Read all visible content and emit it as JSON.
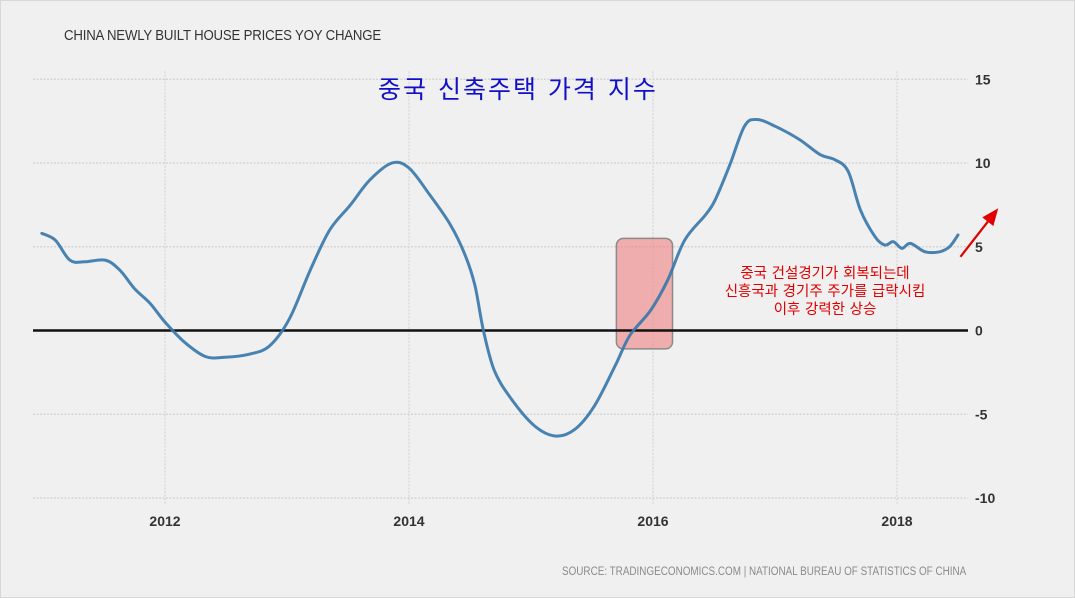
{
  "chart_data": {
    "type": "line",
    "title": "CHINA NEWLY BUILT HOUSE PRICES YOY CHANGE",
    "subtitle": "중국 신축주택 가격 지수",
    "xlabel": "",
    "ylabel": "",
    "xlim": [
      2010.97,
      2018.6
    ],
    "ylim": [
      -10,
      15
    ],
    "x_ticks": [
      "2012",
      "2014",
      "2016",
      "2018"
    ],
    "x_tick_values": [
      2012,
      2014,
      2016,
      2018
    ],
    "y_ticks": [
      "15",
      "10",
      "5",
      "0",
      "-5",
      "-10"
    ],
    "y_tick_values": [
      15,
      10,
      5,
      0,
      -5,
      -10
    ],
    "grid": true,
    "y_axis_side": "right",
    "series": [
      {
        "name": "China Newly Built House Prices YoY Change",
        "color": "#3a78aa",
        "x": [
          2010.99,
          2011.1,
          2011.22,
          2011.34,
          2011.51,
          2011.63,
          2011.75,
          2011.88,
          2012.0,
          2012.16,
          2012.33,
          2012.49,
          2012.7,
          2012.86,
          2013.02,
          2013.19,
          2013.35,
          2013.52,
          2013.68,
          2013.86,
          2014.0,
          2014.17,
          2014.34,
          2014.46,
          2014.54,
          2014.61,
          2014.7,
          2014.84,
          2015.03,
          2015.2,
          2015.36,
          2015.52,
          2015.69,
          2015.81,
          2015.98,
          2016.12,
          2016.26,
          2016.43,
          2016.51,
          2016.63,
          2016.75,
          2016.85,
          2017.0,
          2017.2,
          2017.37,
          2017.49,
          2017.6,
          2017.7,
          2017.82,
          2017.9,
          2017.97,
          2018.04,
          2018.11,
          2018.23,
          2018.35,
          2018.43,
          2018.5
        ],
        "values": [
          5.8,
          5.4,
          4.2,
          4.1,
          4.2,
          3.6,
          2.5,
          1.6,
          0.5,
          -0.7,
          -1.55,
          -1.6,
          -1.4,
          -0.9,
          0.7,
          3.6,
          6.0,
          7.5,
          9.0,
          10.0,
          9.7,
          8.1,
          6.3,
          4.5,
          2.7,
          0.0,
          -2.4,
          -4.1,
          -5.7,
          -6.3,
          -5.9,
          -4.5,
          -2.1,
          -0.3,
          1.2,
          3.0,
          5.4,
          6.9,
          7.8,
          9.9,
          12.2,
          12.6,
          12.2,
          11.4,
          10.5,
          10.2,
          9.5,
          7.2,
          5.6,
          5.1,
          5.3,
          4.9,
          5.2,
          4.7,
          4.7,
          5.0,
          5.7
        ]
      }
    ],
    "zero_line_color": "#111111",
    "highlight": {
      "x_range": [
        2015.7,
        2016.16
      ],
      "y_range": [
        -1.1,
        5.5
      ],
      "color": "#f08080"
    },
    "arrow": {
      "color": "#e00000",
      "from": [
        2018.52,
        4.4
      ],
      "to": [
        2018.83,
        7.3
      ]
    },
    "annotation_lines": [
      "중국 건설경기가 회복되는데",
      "신흥국과 경기주 주가를 급락시킴",
      "이후 강력한 상승"
    ],
    "source": "SOURCE: TRADINGECONOMICS.COM | NATIONAL BUREAU OF STATISTICS OF CHINA"
  }
}
